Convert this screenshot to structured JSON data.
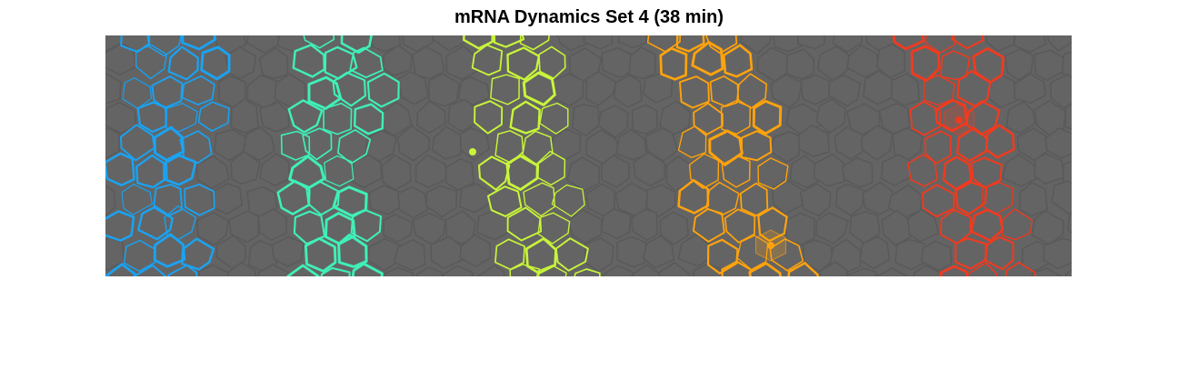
{
  "title": "mRNA Dynamics Set 4 (38 min)",
  "colors": {
    "background_tissue": "#646464",
    "cell_edge": "#5a5a5a",
    "band_1": "#1aa3f2",
    "band_2": "#3ff0b8",
    "band_3": "#c8f53a",
    "band_4": "#ffa30d",
    "band_5": "#f23a1e"
  },
  "cell_bands": [
    {
      "name": "band-blue",
      "color_key": "band_1"
    },
    {
      "name": "band-teal",
      "color_key": "band_2"
    },
    {
      "name": "band-yellowgreen",
      "color_key": "band_3"
    },
    {
      "name": "band-orange",
      "color_key": "band_4"
    },
    {
      "name": "band-red",
      "color_key": "band_5"
    }
  ],
  "highlighted_cells": [
    {
      "name": "highlight-yellow",
      "color_key": "band_3",
      "filled": false
    },
    {
      "name": "highlight-orange",
      "color_key": "band_4",
      "filled": true
    },
    {
      "name": "highlight-red",
      "color_key": "band_5",
      "filled": true
    }
  ]
}
